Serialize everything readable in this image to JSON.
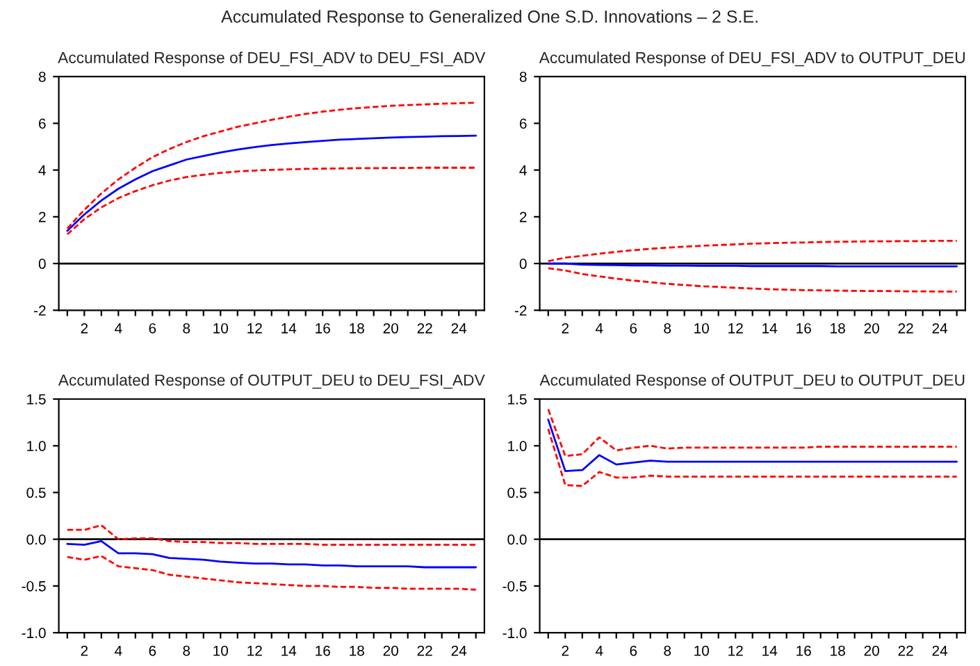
{
  "chart_data": [
    {
      "type": "line",
      "title": "Accumulated Response of DEU_FSI_ADV to DEU_FSI_ADV",
      "annotations": [
        "Accumulated Response to Generalized One S.D. Innovations – 2 S.E."
      ],
      "x": [
        1,
        2,
        3,
        4,
        5,
        6,
        7,
        8,
        9,
        10,
        11,
        12,
        13,
        14,
        15,
        16,
        17,
        18,
        19,
        20,
        21,
        22,
        23,
        24,
        25
      ],
      "series": [
        {
          "color": "#0000ff",
          "line_style": "solid",
          "values": [
            1.4,
            2.1,
            2.7,
            3.2,
            3.6,
            3.95,
            4.2,
            4.45,
            4.6,
            4.75,
            4.88,
            4.98,
            5.07,
            5.14,
            5.2,
            5.25,
            5.3,
            5.33,
            5.36,
            5.39,
            5.41,
            5.43,
            5.45,
            5.46,
            5.47
          ]
        },
        {
          "color": "#ff0000",
          "line_style": "dashed",
          "values": [
            1.5,
            2.3,
            3.0,
            3.6,
            4.1,
            4.55,
            4.9,
            5.2,
            5.45,
            5.65,
            5.85,
            6.0,
            6.15,
            6.28,
            6.4,
            6.5,
            6.58,
            6.65,
            6.7,
            6.75,
            6.78,
            6.81,
            6.84,
            6.86,
            6.88
          ]
        },
        {
          "color": "#ff0000",
          "line_style": "dashed",
          "values": [
            1.25,
            1.9,
            2.4,
            2.8,
            3.1,
            3.35,
            3.55,
            3.7,
            3.8,
            3.88,
            3.94,
            3.98,
            4.01,
            4.03,
            4.05,
            4.06,
            4.07,
            4.08,
            4.08,
            4.09,
            4.09,
            4.1,
            4.1,
            4.1,
            4.1
          ]
        }
      ],
      "ref_lines": [
        {
          "axis": "y",
          "value": 0,
          "color": "#000000"
        }
      ],
      "xlim": [
        0.5,
        25.5
      ],
      "xticks": [
        {
          "value": 1,
          "label": null
        },
        2,
        {
          "value": 3,
          "label": null
        },
        4,
        {
          "value": 5,
          "label": null
        },
        6,
        {
          "value": 7,
          "label": null
        },
        8,
        {
          "value": 9,
          "label": null
        },
        10,
        {
          "value": 11,
          "label": null
        },
        12,
        {
          "value": 13,
          "label": null
        },
        14,
        {
          "value": 15,
          "label": null
        },
        16,
        {
          "value": 17,
          "label": null
        },
        18,
        {
          "value": 19,
          "label": null
        },
        20,
        {
          "value": 21,
          "label": null
        },
        22,
        {
          "value": 23,
          "label": null
        },
        24,
        {
          "value": 25,
          "label": null
        }
      ],
      "ylim": [
        -2,
        8
      ],
      "yticks": [
        -2,
        0,
        2,
        4,
        6,
        8
      ],
      "grid": false
    },
    {
      "type": "line",
      "title": "Accumulated Response of DEU_FSI_ADV to OUTPUT_DEU",
      "x": [
        1,
        2,
        3,
        4,
        5,
        6,
        7,
        8,
        9,
        10,
        11,
        12,
        13,
        14,
        15,
        16,
        17,
        18,
        19,
        20,
        21,
        22,
        23,
        24,
        25
      ],
      "series": [
        {
          "color": "#0000ff",
          "line_style": "solid",
          "values": [
            0.0,
            0.0,
            -0.05,
            -0.06,
            -0.07,
            -0.08,
            -0.08,
            -0.09,
            -0.09,
            -0.1,
            -0.1,
            -0.1,
            -0.11,
            -0.11,
            -0.11,
            -0.11,
            -0.11,
            -0.12,
            -0.12,
            -0.12,
            -0.12,
            -0.12,
            -0.12,
            -0.12,
            -0.12
          ]
        },
        {
          "color": "#ff0000",
          "line_style": "dashed",
          "values": [
            0.1,
            0.25,
            0.33,
            0.42,
            0.5,
            0.57,
            0.63,
            0.68,
            0.72,
            0.76,
            0.79,
            0.82,
            0.85,
            0.87,
            0.89,
            0.9,
            0.92,
            0.93,
            0.94,
            0.95,
            0.95,
            0.96,
            0.96,
            0.97,
            0.97
          ]
        },
        {
          "color": "#ff0000",
          "line_style": "dashed",
          "values": [
            -0.2,
            -0.3,
            -0.45,
            -0.55,
            -0.65,
            -0.73,
            -0.8,
            -0.87,
            -0.92,
            -0.97,
            -1.0,
            -1.04,
            -1.07,
            -1.1,
            -1.12,
            -1.14,
            -1.15,
            -1.16,
            -1.17,
            -1.18,
            -1.18,
            -1.19,
            -1.19,
            -1.2,
            -1.2
          ]
        }
      ],
      "ref_lines": [
        {
          "axis": "y",
          "value": 0,
          "color": "#000000"
        }
      ],
      "xlim": [
        0.5,
        25.5
      ],
      "xticks": [
        {
          "value": 1,
          "label": null
        },
        2,
        {
          "value": 3,
          "label": null
        },
        4,
        {
          "value": 5,
          "label": null
        },
        6,
        {
          "value": 7,
          "label": null
        },
        8,
        {
          "value": 9,
          "label": null
        },
        10,
        {
          "value": 11,
          "label": null
        },
        12,
        {
          "value": 13,
          "label": null
        },
        14,
        {
          "value": 15,
          "label": null
        },
        16,
        {
          "value": 17,
          "label": null
        },
        18,
        {
          "value": 19,
          "label": null
        },
        20,
        {
          "value": 21,
          "label": null
        },
        22,
        {
          "value": 23,
          "label": null
        },
        24,
        {
          "value": 25,
          "label": null
        }
      ],
      "ylim": [
        -2,
        8
      ],
      "yticks": [
        -2,
        0,
        2,
        4,
        6,
        8
      ],
      "grid": false
    },
    {
      "type": "line",
      "title": "Accumulated Response of OUTPUT_DEU to DEU_FSI_ADV",
      "x": [
        1,
        2,
        3,
        4,
        5,
        6,
        7,
        8,
        9,
        10,
        11,
        12,
        13,
        14,
        15,
        16,
        17,
        18,
        19,
        20,
        21,
        22,
        23,
        24,
        25
      ],
      "series": [
        {
          "color": "#0000ff",
          "line_style": "solid",
          "values": [
            -0.05,
            -0.06,
            -0.02,
            -0.15,
            -0.15,
            -0.16,
            -0.2,
            -0.21,
            -0.22,
            -0.24,
            -0.25,
            -0.26,
            -0.26,
            -0.27,
            -0.27,
            -0.28,
            -0.28,
            -0.29,
            -0.29,
            -0.29,
            -0.29,
            -0.3,
            -0.3,
            -0.3,
            -0.3
          ]
        },
        {
          "color": "#ff0000",
          "line_style": "dashed",
          "values": [
            0.1,
            0.1,
            0.15,
            0.0,
            0.01,
            0.01,
            -0.02,
            -0.03,
            -0.03,
            -0.04,
            -0.04,
            -0.05,
            -0.05,
            -0.05,
            -0.05,
            -0.06,
            -0.06,
            -0.06,
            -0.06,
            -0.06,
            -0.06,
            -0.06,
            -0.06,
            -0.06,
            -0.06
          ]
        },
        {
          "color": "#ff0000",
          "line_style": "dashed",
          "values": [
            -0.19,
            -0.22,
            -0.18,
            -0.29,
            -0.31,
            -0.33,
            -0.38,
            -0.4,
            -0.42,
            -0.44,
            -0.46,
            -0.47,
            -0.48,
            -0.49,
            -0.5,
            -0.5,
            -0.51,
            -0.51,
            -0.52,
            -0.52,
            -0.53,
            -0.53,
            -0.53,
            -0.53,
            -0.54
          ]
        }
      ],
      "ref_lines": [
        {
          "axis": "y",
          "value": 0,
          "color": "#000000"
        }
      ],
      "xlim": [
        0.5,
        25.5
      ],
      "xticks": [
        {
          "value": 1,
          "label": null
        },
        2,
        {
          "value": 3,
          "label": null
        },
        4,
        {
          "value": 5,
          "label": null
        },
        6,
        {
          "value": 7,
          "label": null
        },
        8,
        {
          "value": 9,
          "label": null
        },
        10,
        {
          "value": 11,
          "label": null
        },
        12,
        {
          "value": 13,
          "label": null
        },
        14,
        {
          "value": 15,
          "label": null
        },
        16,
        {
          "value": 17,
          "label": null
        },
        18,
        {
          "value": 19,
          "label": null
        },
        20,
        {
          "value": 21,
          "label": null
        },
        22,
        {
          "value": 23,
          "label": null
        },
        24,
        {
          "value": 25,
          "label": null
        }
      ],
      "ylim": [
        -1,
        1.5
      ],
      "yticks": [
        {
          "value": -1,
          "label": "-1.0"
        },
        {
          "value": -0.5,
          "label": "-0.5"
        },
        {
          "value": 0,
          "label": "0.0"
        },
        {
          "value": 0.5,
          "label": "0.5"
        },
        {
          "value": 1,
          "label": "1.0"
        },
        {
          "value": 1.5,
          "label": "1.5"
        }
      ],
      "grid": false
    },
    {
      "type": "line",
      "title": "Accumulated Response of OUTPUT_DEU to OUTPUT_DEU",
      "x": [
        1,
        2,
        3,
        4,
        5,
        6,
        7,
        8,
        9,
        10,
        11,
        12,
        13,
        14,
        15,
        16,
        17,
        18,
        19,
        20,
        21,
        22,
        23,
        24,
        25
      ],
      "series": [
        {
          "color": "#0000ff",
          "line_style": "solid",
          "values": [
            1.28,
            0.73,
            0.74,
            0.9,
            0.8,
            0.82,
            0.84,
            0.83,
            0.83,
            0.83,
            0.83,
            0.83,
            0.83,
            0.83,
            0.83,
            0.83,
            0.83,
            0.83,
            0.83,
            0.83,
            0.83,
            0.83,
            0.83,
            0.83,
            0.83
          ]
        },
        {
          "color": "#ff0000",
          "line_style": "dashed",
          "values": [
            1.39,
            0.89,
            0.91,
            1.09,
            0.95,
            0.98,
            1.0,
            0.97,
            0.98,
            0.98,
            0.98,
            0.98,
            0.98,
            0.98,
            0.98,
            0.98,
            0.99,
            0.99,
            0.99,
            0.99,
            0.99,
            0.99,
            0.99,
            0.99,
            0.99
          ]
        },
        {
          "color": "#ff0000",
          "line_style": "dashed",
          "values": [
            1.18,
            0.58,
            0.57,
            0.72,
            0.66,
            0.66,
            0.68,
            0.67,
            0.67,
            0.67,
            0.67,
            0.67,
            0.67,
            0.67,
            0.67,
            0.67,
            0.67,
            0.67,
            0.67,
            0.67,
            0.67,
            0.67,
            0.67,
            0.67,
            0.67
          ]
        }
      ],
      "ref_lines": [
        {
          "axis": "y",
          "value": 0,
          "color": "#000000"
        }
      ],
      "xlim": [
        0.5,
        25.5
      ],
      "xticks": [
        {
          "value": 1,
          "label": null
        },
        2,
        {
          "value": 3,
          "label": null
        },
        4,
        {
          "value": 5,
          "label": null
        },
        6,
        {
          "value": 7,
          "label": null
        },
        8,
        {
          "value": 9,
          "label": null
        },
        10,
        {
          "value": 11,
          "label": null
        },
        12,
        {
          "value": 13,
          "label": null
        },
        14,
        {
          "value": 15,
          "label": null
        },
        16,
        {
          "value": 17,
          "label": null
        },
        18,
        {
          "value": 19,
          "label": null
        },
        20,
        {
          "value": 21,
          "label": null
        },
        22,
        {
          "value": 23,
          "label": null
        },
        24,
        {
          "value": 25,
          "label": null
        }
      ],
      "ylim": [
        -1,
        1.5
      ],
      "yticks": [
        {
          "value": -1,
          "label": "-1.0"
        },
        {
          "value": -0.5,
          "label": "-0.5"
        },
        {
          "value": 0,
          "label": "0.0"
        },
        {
          "value": 0.5,
          "label": "0.5"
        },
        {
          "value": 1,
          "label": "1.0"
        },
        {
          "value": 1.5,
          "label": "1.5"
        }
      ],
      "grid": false
    }
  ]
}
